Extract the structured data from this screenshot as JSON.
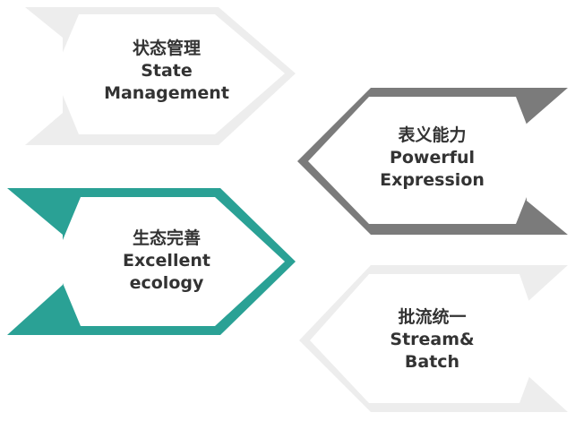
{
  "colors": {
    "light_frame": "#ededed",
    "dark_frame": "#7b7b7b",
    "teal_frame": "#2aa195",
    "card_fill": "#ffffff",
    "text": "#333333"
  },
  "cards": [
    {
      "id": "state",
      "line_cn": "状态管理",
      "line_en_1": "State",
      "line_en_2": "Management",
      "frame": "light"
    },
    {
      "id": "expression",
      "line_cn": "表义能力",
      "line_en_1": "Powerful",
      "line_en_2": "Expression",
      "frame": "dark"
    },
    {
      "id": "ecology",
      "line_cn": "生态完善",
      "line_en_1": "Excellent",
      "line_en_2": "ecology",
      "frame": "teal"
    },
    {
      "id": "stream",
      "line_cn": "批流统一",
      "line_en_1": "Stream&",
      "line_en_2": "Batch",
      "frame": "light"
    }
  ]
}
